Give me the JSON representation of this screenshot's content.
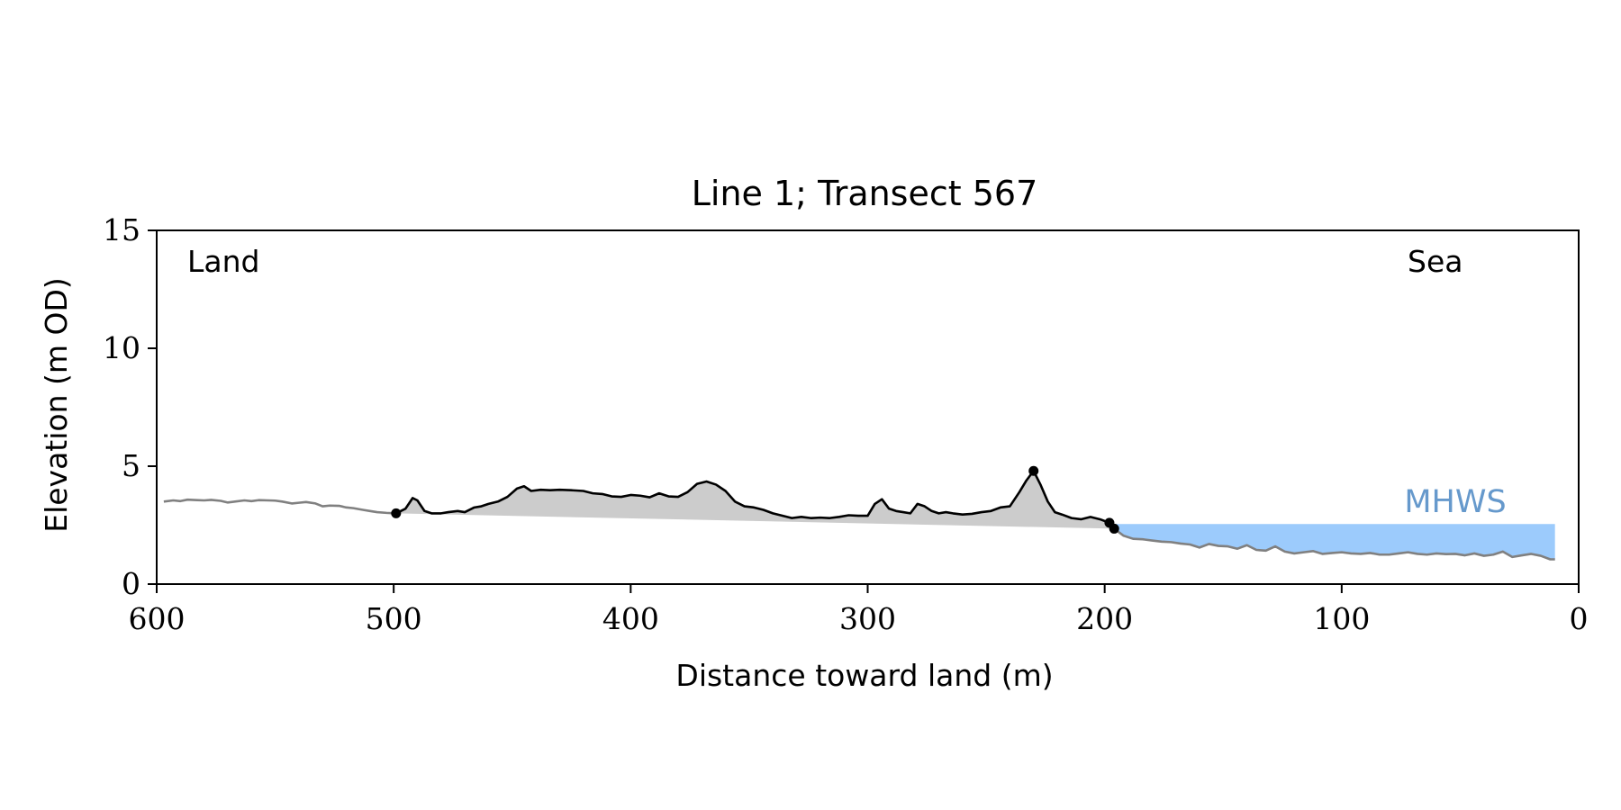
{
  "chart_data": {
    "type": "area",
    "title": "Line 1; Transect 567",
    "xlabel": "Distance toward land (m)",
    "ylabel": "Elevation (m OD)",
    "xlim": [
      600,
      0
    ],
    "ylim": [
      0,
      15
    ],
    "x_inverted": true,
    "xticks": [
      600,
      500,
      400,
      300,
      200,
      100,
      0
    ],
    "yticks": [
      0,
      5,
      10,
      15
    ],
    "grid": false,
    "annotations": {
      "land": "Land",
      "sea": "Sea",
      "mhws": "MHWS"
    },
    "mhws_level": 2.55,
    "dune_points": [
      {
        "x": 499,
        "y": 3.0
      },
      {
        "x": 230,
        "y": 4.8
      },
      {
        "x": 198,
        "y": 2.6
      },
      {
        "x": 196,
        "y": 2.35
      }
    ],
    "series": [
      {
        "name": "",
        "role": "landward profile",
        "color": "#808080",
        "x": [
          597,
          593,
          590,
          587,
          583,
          580,
          577,
          573,
          570,
          567,
          563,
          560,
          557,
          553,
          550,
          547,
          543,
          540,
          537,
          533,
          530,
          527,
          523,
          520,
          517,
          513,
          510,
          507,
          503,
          499
        ],
        "y": [
          3.5,
          3.55,
          3.52,
          3.58,
          3.56,
          3.55,
          3.57,
          3.53,
          3.46,
          3.5,
          3.55,
          3.52,
          3.56,
          3.55,
          3.54,
          3.5,
          3.42,
          3.45,
          3.48,
          3.42,
          3.3,
          3.33,
          3.32,
          3.25,
          3.22,
          3.15,
          3.1,
          3.05,
          3.02,
          3.0
        ]
      },
      {
        "name": "",
        "role": "dune profile",
        "color": "#000000",
        "x": [
          499,
          495,
          492,
          490,
          487,
          484,
          480,
          477,
          473,
          470,
          466,
          463,
          460,
          456,
          452,
          448,
          445,
          442,
          438,
          434,
          430,
          425,
          420,
          416,
          412,
          408,
          404,
          400,
          396,
          392,
          388,
          384,
          380,
          376,
          372,
          368,
          364,
          360,
          356,
          352,
          348,
          344,
          340,
          336,
          332,
          328,
          324,
          320,
          316,
          312,
          308,
          304,
          300,
          297,
          294,
          291,
          288,
          285,
          282,
          279,
          276,
          273,
          270,
          267,
          264,
          260,
          256,
          252,
          248,
          244,
          240,
          236,
          233,
          230,
          227,
          224,
          221,
          218,
          214,
          210,
          206,
          202,
          198,
          196
        ],
        "y": [
          3.0,
          3.2,
          3.65,
          3.55,
          3.1,
          3.0,
          3.0,
          3.05,
          3.1,
          3.05,
          3.25,
          3.3,
          3.4,
          3.5,
          3.7,
          4.05,
          4.15,
          3.95,
          4.0,
          3.98,
          4.0,
          3.98,
          3.95,
          3.85,
          3.82,
          3.72,
          3.7,
          3.78,
          3.75,
          3.68,
          3.85,
          3.72,
          3.7,
          3.9,
          4.25,
          4.35,
          4.22,
          3.95,
          3.5,
          3.3,
          3.25,
          3.15,
          3.0,
          2.9,
          2.8,
          2.85,
          2.8,
          2.82,
          2.8,
          2.85,
          2.92,
          2.9,
          2.9,
          3.4,
          3.6,
          3.2,
          3.1,
          3.05,
          3.0,
          3.4,
          3.3,
          3.1,
          3.0,
          3.05,
          3.0,
          2.95,
          2.98,
          3.05,
          3.1,
          3.25,
          3.3,
          3.9,
          4.4,
          4.8,
          4.2,
          3.5,
          3.05,
          2.95,
          2.8,
          2.75,
          2.85,
          2.75,
          2.6,
          2.35
        ]
      },
      {
        "name": "",
        "role": "seaward profile",
        "color": "#808080",
        "x": [
          196,
          192,
          188,
          184,
          180,
          176,
          172,
          168,
          164,
          160,
          156,
          152,
          148,
          144,
          140,
          136,
          132,
          128,
          124,
          120,
          116,
          112,
          108,
          104,
          100,
          96,
          92,
          88,
          84,
          80,
          76,
          72,
          68,
          64,
          60,
          56,
          52,
          48,
          44,
          40,
          36,
          32,
          28,
          24,
          20,
          16,
          12,
          10
        ],
        "y": [
          2.35,
          2.05,
          1.92,
          1.9,
          1.85,
          1.8,
          1.78,
          1.72,
          1.68,
          1.55,
          1.7,
          1.62,
          1.6,
          1.5,
          1.65,
          1.45,
          1.42,
          1.6,
          1.38,
          1.3,
          1.35,
          1.4,
          1.28,
          1.32,
          1.35,
          1.3,
          1.28,
          1.32,
          1.25,
          1.25,
          1.3,
          1.35,
          1.28,
          1.25,
          1.3,
          1.27,
          1.28,
          1.22,
          1.3,
          1.2,
          1.25,
          1.38,
          1.15,
          1.22,
          1.28,
          1.2,
          1.05,
          1.05
        ]
      }
    ],
    "fill_colors": {
      "dune_area": "#cccccc",
      "sea_area": "#9ccbfc",
      "mhws_label": "#6699cc"
    }
  }
}
